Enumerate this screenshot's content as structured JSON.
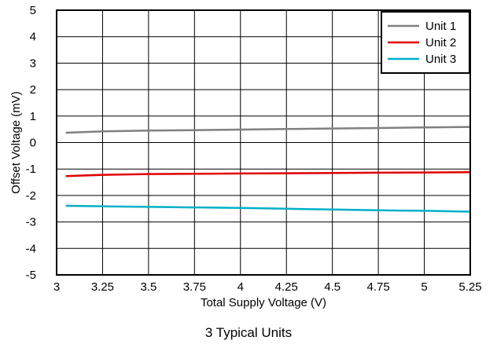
{
  "caption": "3 Typical Units",
  "chart_data": {
    "type": "line",
    "xlabel": "Total Supply Voltage (V)",
    "ylabel": "Offset Voltage (mV)",
    "xlim": [
      3,
      5.25
    ],
    "ylim": [
      -5,
      5
    ],
    "xticks": [
      "3",
      "3.25",
      "3.5",
      "3.75",
      "4",
      "4.25",
      "4.5",
      "4.75",
      "5",
      "5.25"
    ],
    "yticks": [
      "-5",
      "-4",
      "-3",
      "-2",
      "-1",
      "0",
      "1",
      "2",
      "3",
      "4",
      "5"
    ],
    "grid": true,
    "legend_position": "top-right",
    "series": [
      {
        "name": "Unit 1",
        "color": "#808080",
        "x": [
          3.05,
          3.25,
          3.5,
          3.75,
          4.0,
          4.25,
          4.5,
          4.75,
          5.0,
          5.25
        ],
        "y": [
          0.37,
          0.42,
          0.45,
          0.47,
          0.49,
          0.51,
          0.53,
          0.55,
          0.57,
          0.59
        ]
      },
      {
        "name": "Unit 2",
        "color": "#e00000",
        "x": [
          3.05,
          3.25,
          3.5,
          3.75,
          4.0,
          4.25,
          4.5,
          4.75,
          5.0,
          5.25
        ],
        "y": [
          -1.27,
          -1.22,
          -1.19,
          -1.18,
          -1.17,
          -1.16,
          -1.15,
          -1.14,
          -1.13,
          -1.12
        ]
      },
      {
        "name": "Unit 3",
        "color": "#00b0c8",
        "x": [
          3.05,
          3.25,
          3.5,
          3.75,
          4.0,
          4.25,
          4.5,
          4.75,
          5.0,
          5.25
        ],
        "y": [
          -2.39,
          -2.41,
          -2.43,
          -2.45,
          -2.47,
          -2.5,
          -2.53,
          -2.56,
          -2.58,
          -2.61
        ]
      }
    ]
  }
}
